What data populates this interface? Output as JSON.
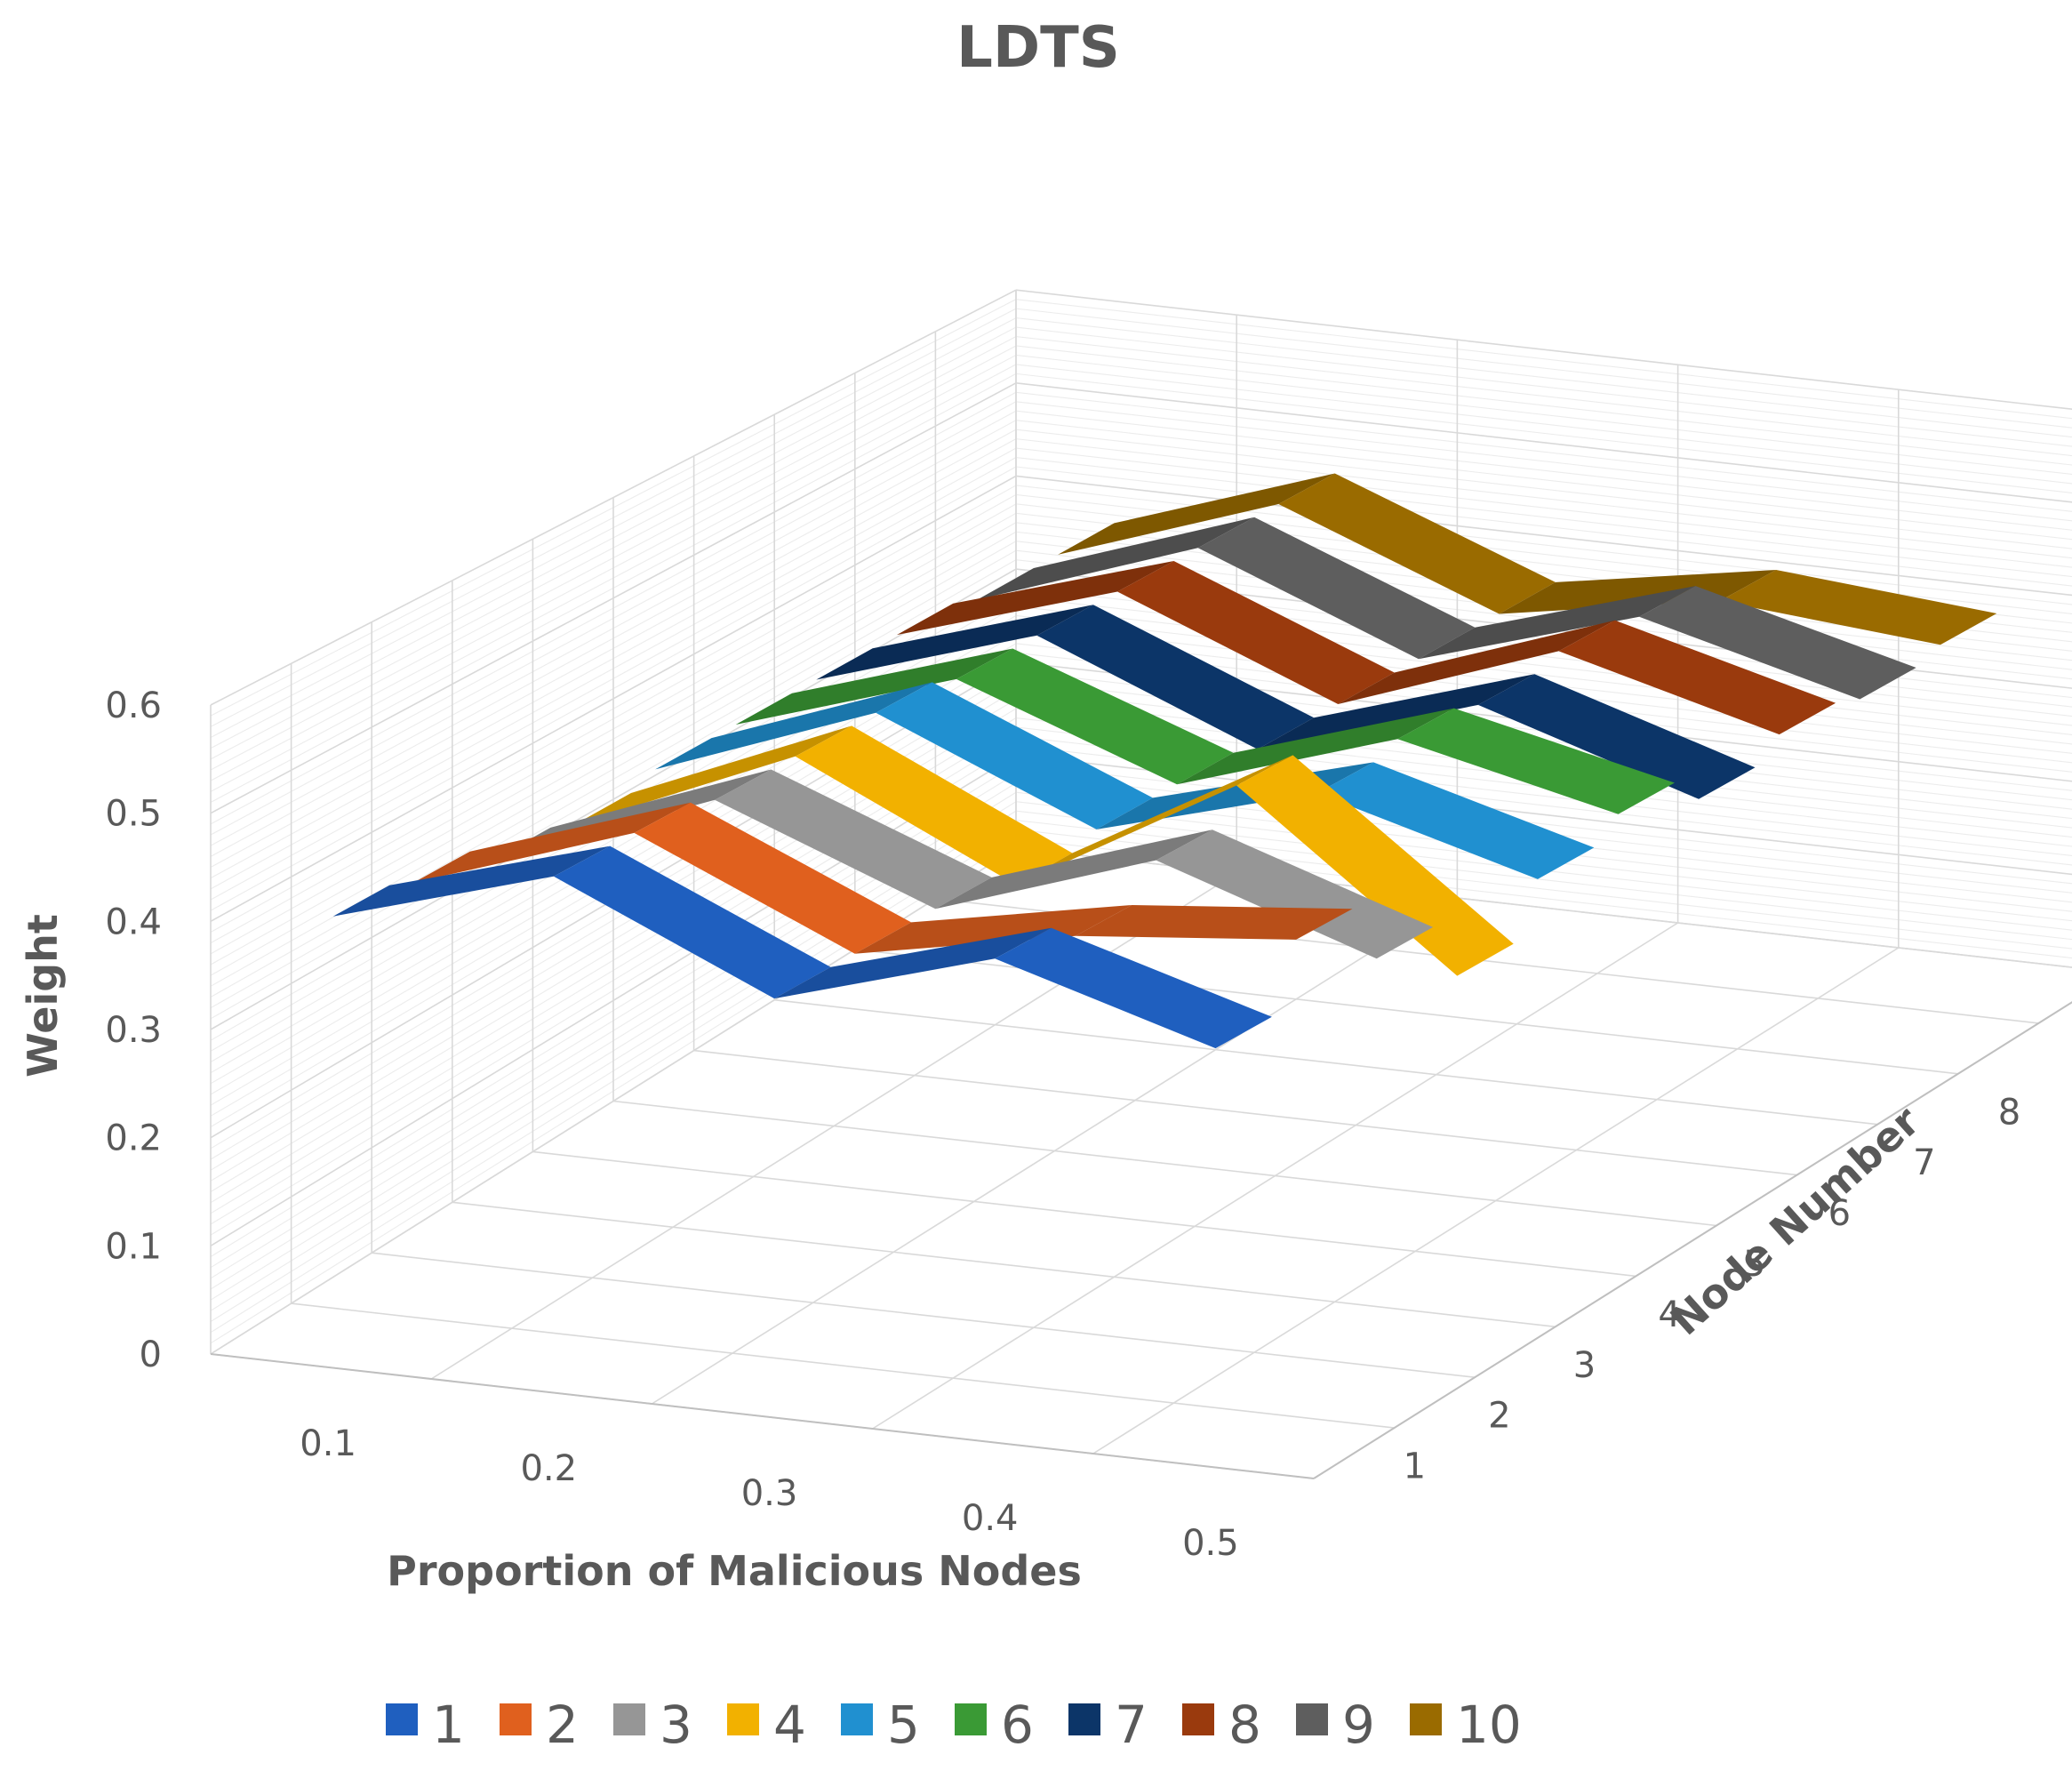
{
  "chart_data": {
    "type": "line",
    "subtype": "3d-line",
    "title": "LDTS",
    "xlabel": "Proportion of Malicious Nodes",
    "ylabel": "Node Number",
    "zlabel": "Weight",
    "categories": [
      "0.1",
      "0.2",
      "0.3",
      "0.4",
      "0.5"
    ],
    "depth_categories": [
      "1",
      "2",
      "3",
      "4",
      "5",
      "6",
      "7",
      "8",
      "9",
      "10"
    ],
    "zlim": [
      0,
      0.6
    ],
    "z_ticks": [
      "0",
      "0.1",
      "0.2",
      "0.3",
      "0.4",
      "0.5",
      "0.6"
    ],
    "grid": true,
    "legend_position": "bottom",
    "series": [
      {
        "name": "1",
        "color": "#1f5fbf",
        "values": [
          0.41,
          0.47,
          0.38,
          0.44,
          0.38
        ]
      },
      {
        "name": "2",
        "color": "#e0601e",
        "values": [
          0.4,
          0.47,
          0.38,
          0.42,
          0.44
        ]
      },
      {
        "name": "3",
        "color": "#969696",
        "values": [
          0.38,
          0.46,
          0.38,
          0.45,
          0.38
        ]
      },
      {
        "name": "4",
        "color": "#f2b100",
        "values": [
          0.37,
          0.46,
          0.36,
          0.48,
          0.32
        ]
      },
      {
        "name": "5",
        "color": "#2090d0",
        "values": [
          0.38,
          0.46,
          0.37,
          0.43,
          0.37
        ]
      },
      {
        "name": "6",
        "color": "#3a9a35",
        "values": [
          0.38,
          0.45,
          0.37,
          0.44,
          0.39
        ]
      },
      {
        "name": "7",
        "color": "#0c3568",
        "values": [
          0.38,
          0.45,
          0.36,
          0.43,
          0.36
        ]
      },
      {
        "name": "8",
        "color": "#9a3a0d",
        "values": [
          0.38,
          0.45,
          0.36,
          0.44,
          0.38
        ]
      },
      {
        "name": "9",
        "color": "#5e5e5e",
        "values": [
          0.37,
          0.45,
          0.36,
          0.43,
          0.37
        ]
      },
      {
        "name": "10",
        "color": "#9a6b00",
        "values": [
          0.37,
          0.45,
          0.36,
          0.4,
          0.38
        ]
      }
    ]
  }
}
